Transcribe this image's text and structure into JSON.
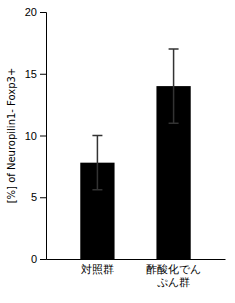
{
  "chart_data": {
    "type": "bar",
    "categories": [
      "対照群",
      "酢酸化でん\nぷん群"
    ],
    "values": [
      7.8,
      14.0
    ],
    "errors": [
      2.2,
      3.0
    ],
    "color": "#000000",
    "ylabel": "[%] of Neuropilin1- Foxp3+",
    "ylim": [
      0,
      20
    ],
    "yticks": [
      0,
      5,
      10,
      15,
      20
    ],
    "grid": false
  }
}
